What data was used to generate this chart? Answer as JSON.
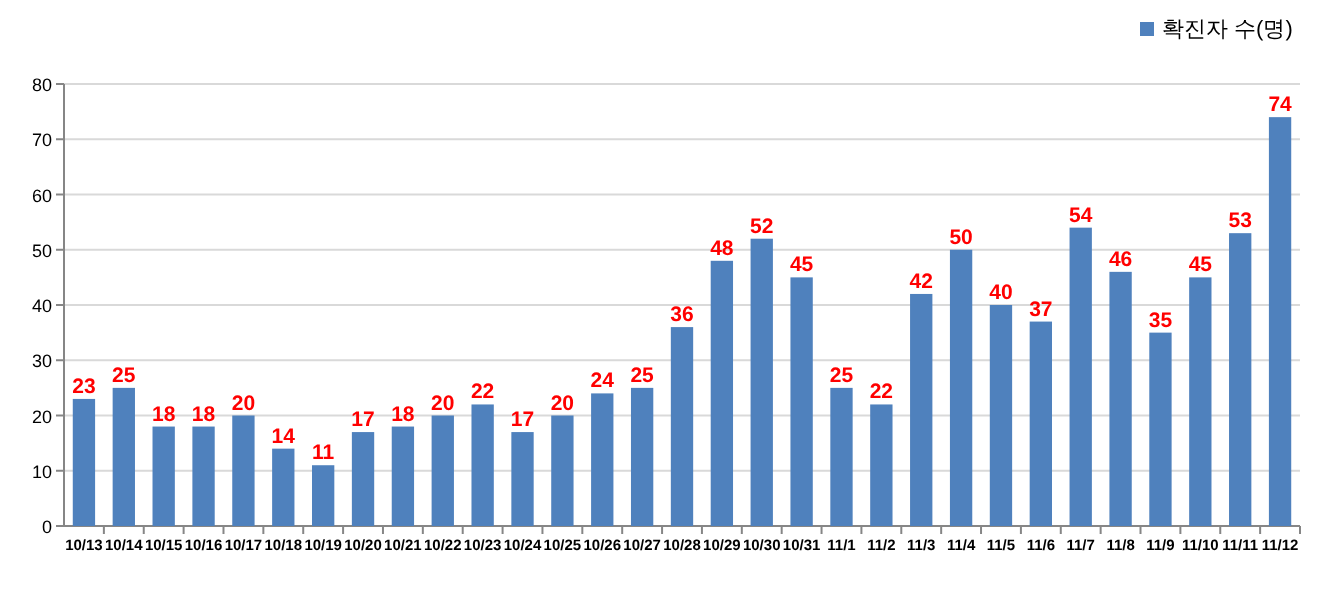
{
  "chart_data": {
    "type": "bar",
    "categories": [
      "10/13",
      "10/14",
      "10/15",
      "10/16",
      "10/17",
      "10/18",
      "10/19",
      "10/20",
      "10/21",
      "10/22",
      "10/23",
      "10/24",
      "10/25",
      "10/26",
      "10/27",
      "10/28",
      "10/29",
      "10/30",
      "10/31",
      "11/1",
      "11/2",
      "11/3",
      "11/4",
      "11/5",
      "11/6",
      "11/7",
      "11/8",
      "11/9",
      "11/10",
      "11/11",
      "11/12"
    ],
    "series": [
      {
        "name": "확진자 수(명)",
        "color": "#4f81bd",
        "values": [
          23,
          25,
          18,
          18,
          20,
          14,
          11,
          17,
          18,
          20,
          22,
          17,
          20,
          24,
          25,
          36,
          48,
          52,
          45,
          25,
          22,
          42,
          50,
          40,
          37,
          54,
          46,
          35,
          45,
          53,
          74
        ]
      }
    ],
    "ylim": [
      0,
      80
    ],
    "yticks": [
      0,
      10,
      20,
      30,
      40,
      50,
      60,
      70,
      80
    ],
    "grid": "y",
    "legend": "top right",
    "data_labels": true
  }
}
